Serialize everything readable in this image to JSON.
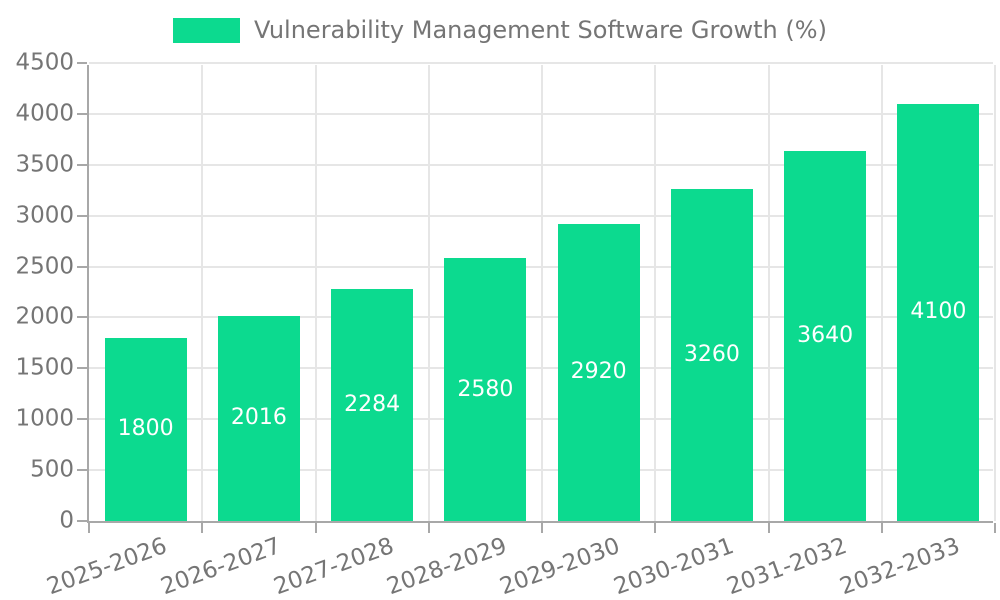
{
  "legend": {
    "label": "Vulnerability Management Software Growth (%)"
  },
  "chart_data": {
    "type": "bar",
    "title": "Vulnerability Management Software Growth (%)",
    "categories": [
      "2025-2026",
      "2026-2027",
      "2027-2028",
      "2028-2029",
      "2029-2030",
      "2030-2031",
      "2031-2032",
      "2032-2033"
    ],
    "values": [
      1800,
      2016,
      2284,
      2580,
      2920,
      3260,
      3640,
      4100
    ],
    "series": [
      {
        "name": "Vulnerability Management Software Growth (%)",
        "values": [
          1800,
          2016,
          2284,
          2580,
          2920,
          3260,
          3640,
          4100
        ]
      }
    ],
    "xlabel": "",
    "ylabel": "",
    "ylim": [
      0,
      4500
    ],
    "ytick_step": 500,
    "yticks": [
      0,
      500,
      1000,
      1500,
      2000,
      2500,
      3000,
      3500,
      4000,
      4500
    ],
    "grid": true,
    "legend_position": "top",
    "bar_labels_inside": true,
    "x_label_rotation_deg": -20,
    "colors": {
      "bar": "#0cda8f",
      "axis": "#a8a8a8",
      "gridline": "#e6e6e6",
      "text": "#757575",
      "value_label": "#ffffff",
      "background": "#ffffff"
    }
  }
}
